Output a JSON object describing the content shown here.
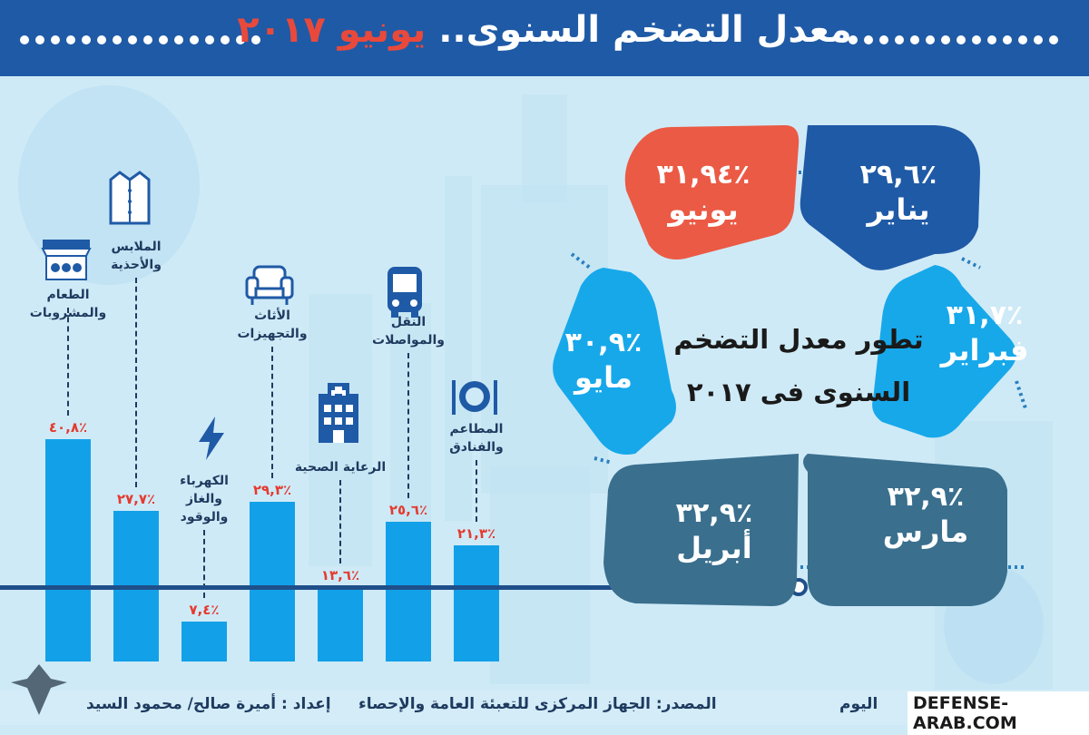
{
  "header": {
    "title_main": "معدل التضخم السنوى.. ",
    "title_highlight": "يونيو ٢٠١٧"
  },
  "colors": {
    "header_bg": "#1f5aa6",
    "bar": "#12a1e9",
    "value_text": "#e43b2f",
    "june": "#eb5a45",
    "jan": "#1f5aa6",
    "feb": "#17a8ea",
    "mar": "#3a6f8e",
    "apr": "#3a6f8e",
    "may": "#17a8ea"
  },
  "chart_data": [
    {
      "type": "bar",
      "categories": [
        "الطعام والمشروبات",
        "الملابس والأحذية",
        "الكهرباء والغاز والوقود",
        "الأثاث والتجهيزات",
        "الرعاية الصحية",
        "النقل والمواصلات",
        "المطاعم والفنادق"
      ],
      "values": [
        40.8,
        27.7,
        7.4,
        29.3,
        13.6,
        25.6,
        21.3
      ],
      "value_labels": [
        "٪٤٠,٨",
        "٪٢٧,٧",
        "٪٧,٤",
        "٪٢٩,٣",
        "٪١٣,٦",
        "٪٢٥,٦",
        "٪٢١,٣"
      ],
      "category_lines": [
        [
          "الطعام والمشروبات"
        ],
        [
          "الملابس",
          "والأحذية"
        ],
        [
          "الكهرباء",
          "والغاز",
          "والوقود"
        ],
        [
          "الأثاث",
          "والتجهيزات"
        ],
        [
          "الرعاية الصحية"
        ],
        [
          "النقل",
          "والمواصلات"
        ],
        [
          "المطاعم",
          "والفنادق"
        ]
      ],
      "icons": [
        "market-stall-icon",
        "shirt-icon",
        "lightning-icon",
        "armchair-icon",
        "hospital-icon",
        "bus-icon",
        "plate-fork-knife-icon"
      ],
      "ylim": [
        0,
        45
      ]
    },
    {
      "type": "pie",
      "title": "تطور معدل التضخم السنوى فى ٢٠١٧",
      "categories": [
        "يناير",
        "فبراير",
        "مارس",
        "أبريل",
        "مايو",
        "يونيو"
      ],
      "values": [
        29.6,
        31.7,
        32.9,
        32.9,
        30.9,
        31.94
      ],
      "value_labels": [
        "٪٢٩,٦",
        "٪٣١,٧",
        "٪٣٢,٩",
        "٪٣٢,٩",
        "٪٣٠,٩",
        "٪٣١,٩٤"
      ]
    }
  ],
  "ring": {
    "title_line1": "تطور معدل التضخم",
    "title_line2": "السنوى فى ٢٠١٧"
  },
  "footer": {
    "prepared_by": "إعداد : أميرة صالح/ محمود السيد",
    "source": "المصدر: الجهاز المركزى للتعبئة العامة والإحصاء",
    "paper": "اليوم",
    "watermark": "DEFENSE-ARAB.COM"
  }
}
